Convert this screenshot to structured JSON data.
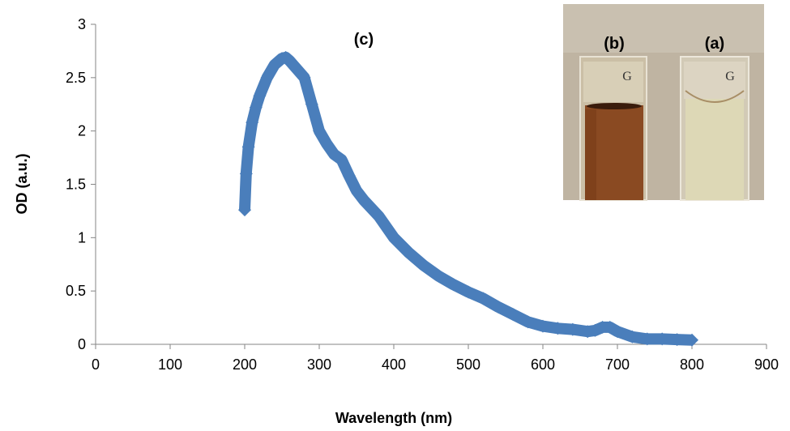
{
  "chart_data": {
    "type": "scatter",
    "xlabel": "Wavelength (nm)",
    "ylabel": "OD (a.u.)",
    "xlim": [
      0,
      900
    ],
    "ylim": [
      0,
      3
    ],
    "xticks": [
      "0",
      "100",
      "200",
      "300",
      "400",
      "500",
      "600",
      "700",
      "800",
      "900"
    ],
    "yticks": [
      "0",
      "0.5",
      "1",
      "1.5",
      "2",
      "2.5",
      "3"
    ],
    "grid": false,
    "panel_label": "(c)",
    "series": [
      {
        "color": "#4a7ebb",
        "x": [
          200,
          202,
          205,
          210,
          215,
          220,
          230,
          240,
          250,
          255,
          260,
          270,
          280,
          290,
          300,
          310,
          320,
          330,
          340,
          350,
          360,
          380,
          400,
          420,
          440,
          460,
          480,
          500,
          520,
          540,
          560,
          580,
          600,
          620,
          640,
          660,
          670,
          680,
          690,
          700,
          720,
          740,
          760,
          780,
          800
        ],
        "y": [
          1.26,
          1.6,
          1.85,
          2.08,
          2.22,
          2.33,
          2.5,
          2.62,
          2.68,
          2.69,
          2.66,
          2.58,
          2.5,
          2.25,
          2.0,
          1.88,
          1.78,
          1.73,
          1.58,
          1.44,
          1.35,
          1.2,
          1.0,
          0.86,
          0.74,
          0.64,
          0.56,
          0.49,
          0.43,
          0.35,
          0.28,
          0.21,
          0.17,
          0.15,
          0.14,
          0.12,
          0.13,
          0.16,
          0.16,
          0.12,
          0.07,
          0.05,
          0.05,
          0.045,
          0.04
        ]
      }
    ]
  },
  "inset": {
    "labels": [
      "(b)",
      "(a)"
    ],
    "cuvette_mark": "G",
    "colors": {
      "background": "#bfb4a2",
      "cuvette_b_liquid": "#8a4a22",
      "cuvette_a_liquid": "#ddd8b6"
    }
  }
}
